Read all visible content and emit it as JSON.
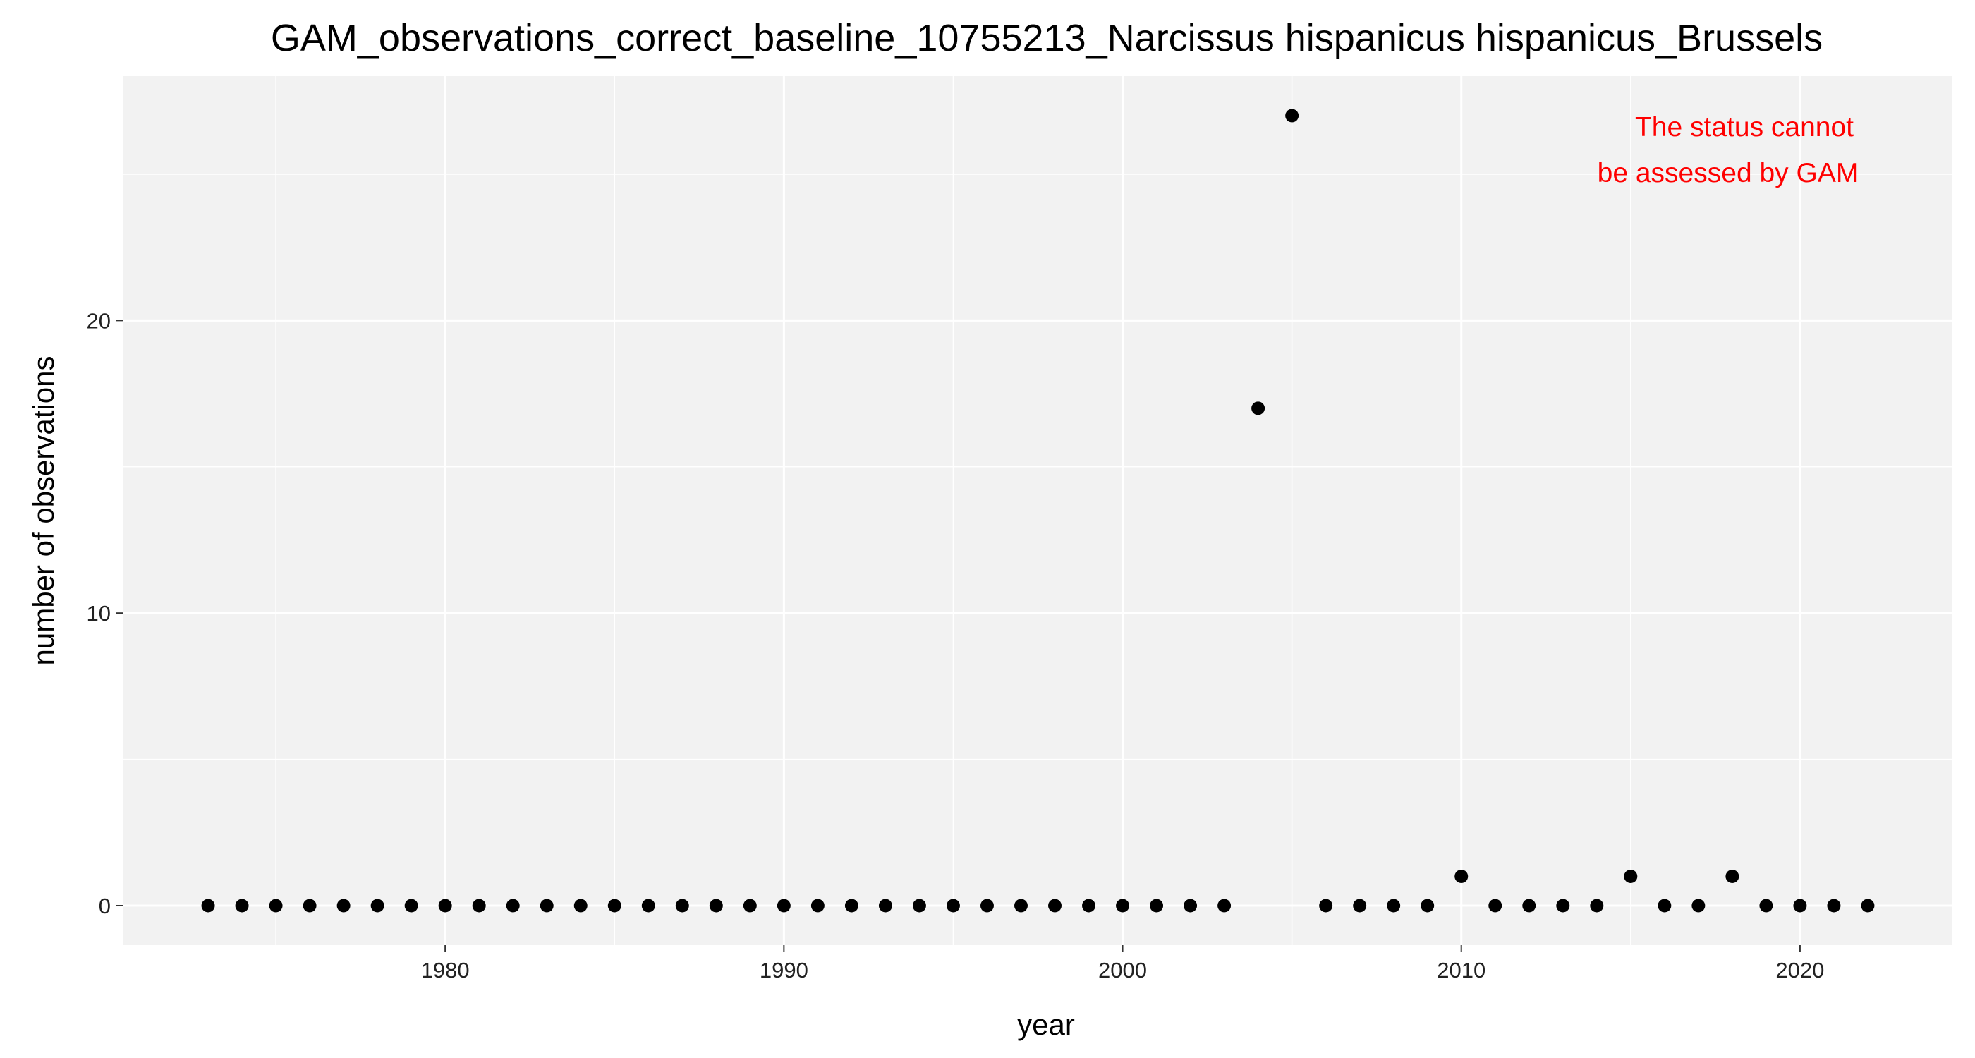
{
  "chart_data": {
    "type": "scatter",
    "title": "GAM_observations_correct_baseline_10755213_Narcissus hispanicus hispanicus_Brussels",
    "xlabel": "year",
    "ylabel": "number of observations",
    "xlim": [
      1970.5,
      2024.5
    ],
    "ylim": [
      -1.35,
      28.35
    ],
    "x_ticks": [
      1980,
      1990,
      2000,
      2010,
      2020
    ],
    "x_tick_labels": [
      "1980",
      "1990",
      "2000",
      "2010",
      "2020"
    ],
    "x_minor_ticks": [
      1975,
      1985,
      1995,
      2005,
      2015
    ],
    "y_ticks": [
      0,
      10,
      20
    ],
    "y_tick_labels": [
      "0",
      "10",
      "20"
    ],
    "y_minor_ticks": [
      5,
      15,
      25
    ],
    "grid": true,
    "background": "#f2f2f2",
    "grid_color": "#ffffff",
    "point_color": "#000000",
    "annotation": {
      "lines": [
        "The status cannot",
        "be assessed by GAM"
      ],
      "color": "#ff0000",
      "placement": "top-right"
    },
    "x": [
      1973,
      1974,
      1975,
      1976,
      1977,
      1978,
      1979,
      1980,
      1981,
      1982,
      1983,
      1984,
      1985,
      1986,
      1987,
      1988,
      1989,
      1990,
      1991,
      1992,
      1993,
      1994,
      1995,
      1996,
      1997,
      1998,
      1999,
      2000,
      2001,
      2002,
      2003,
      2004,
      2005,
      2006,
      2007,
      2008,
      2009,
      2010,
      2011,
      2012,
      2013,
      2014,
      2015,
      2016,
      2017,
      2018,
      2019,
      2020,
      2021,
      2022
    ],
    "y": [
      0,
      0,
      0,
      0,
      0,
      0,
      0,
      0,
      0,
      0,
      0,
      0,
      0,
      0,
      0,
      0,
      0,
      0,
      0,
      0,
      0,
      0,
      0,
      0,
      0,
      0,
      0,
      0,
      0,
      0,
      0,
      17,
      27,
      0,
      0,
      0,
      0,
      1,
      0,
      0,
      0,
      0,
      1,
      0,
      0,
      1,
      0,
      0,
      0,
      0
    ]
  }
}
